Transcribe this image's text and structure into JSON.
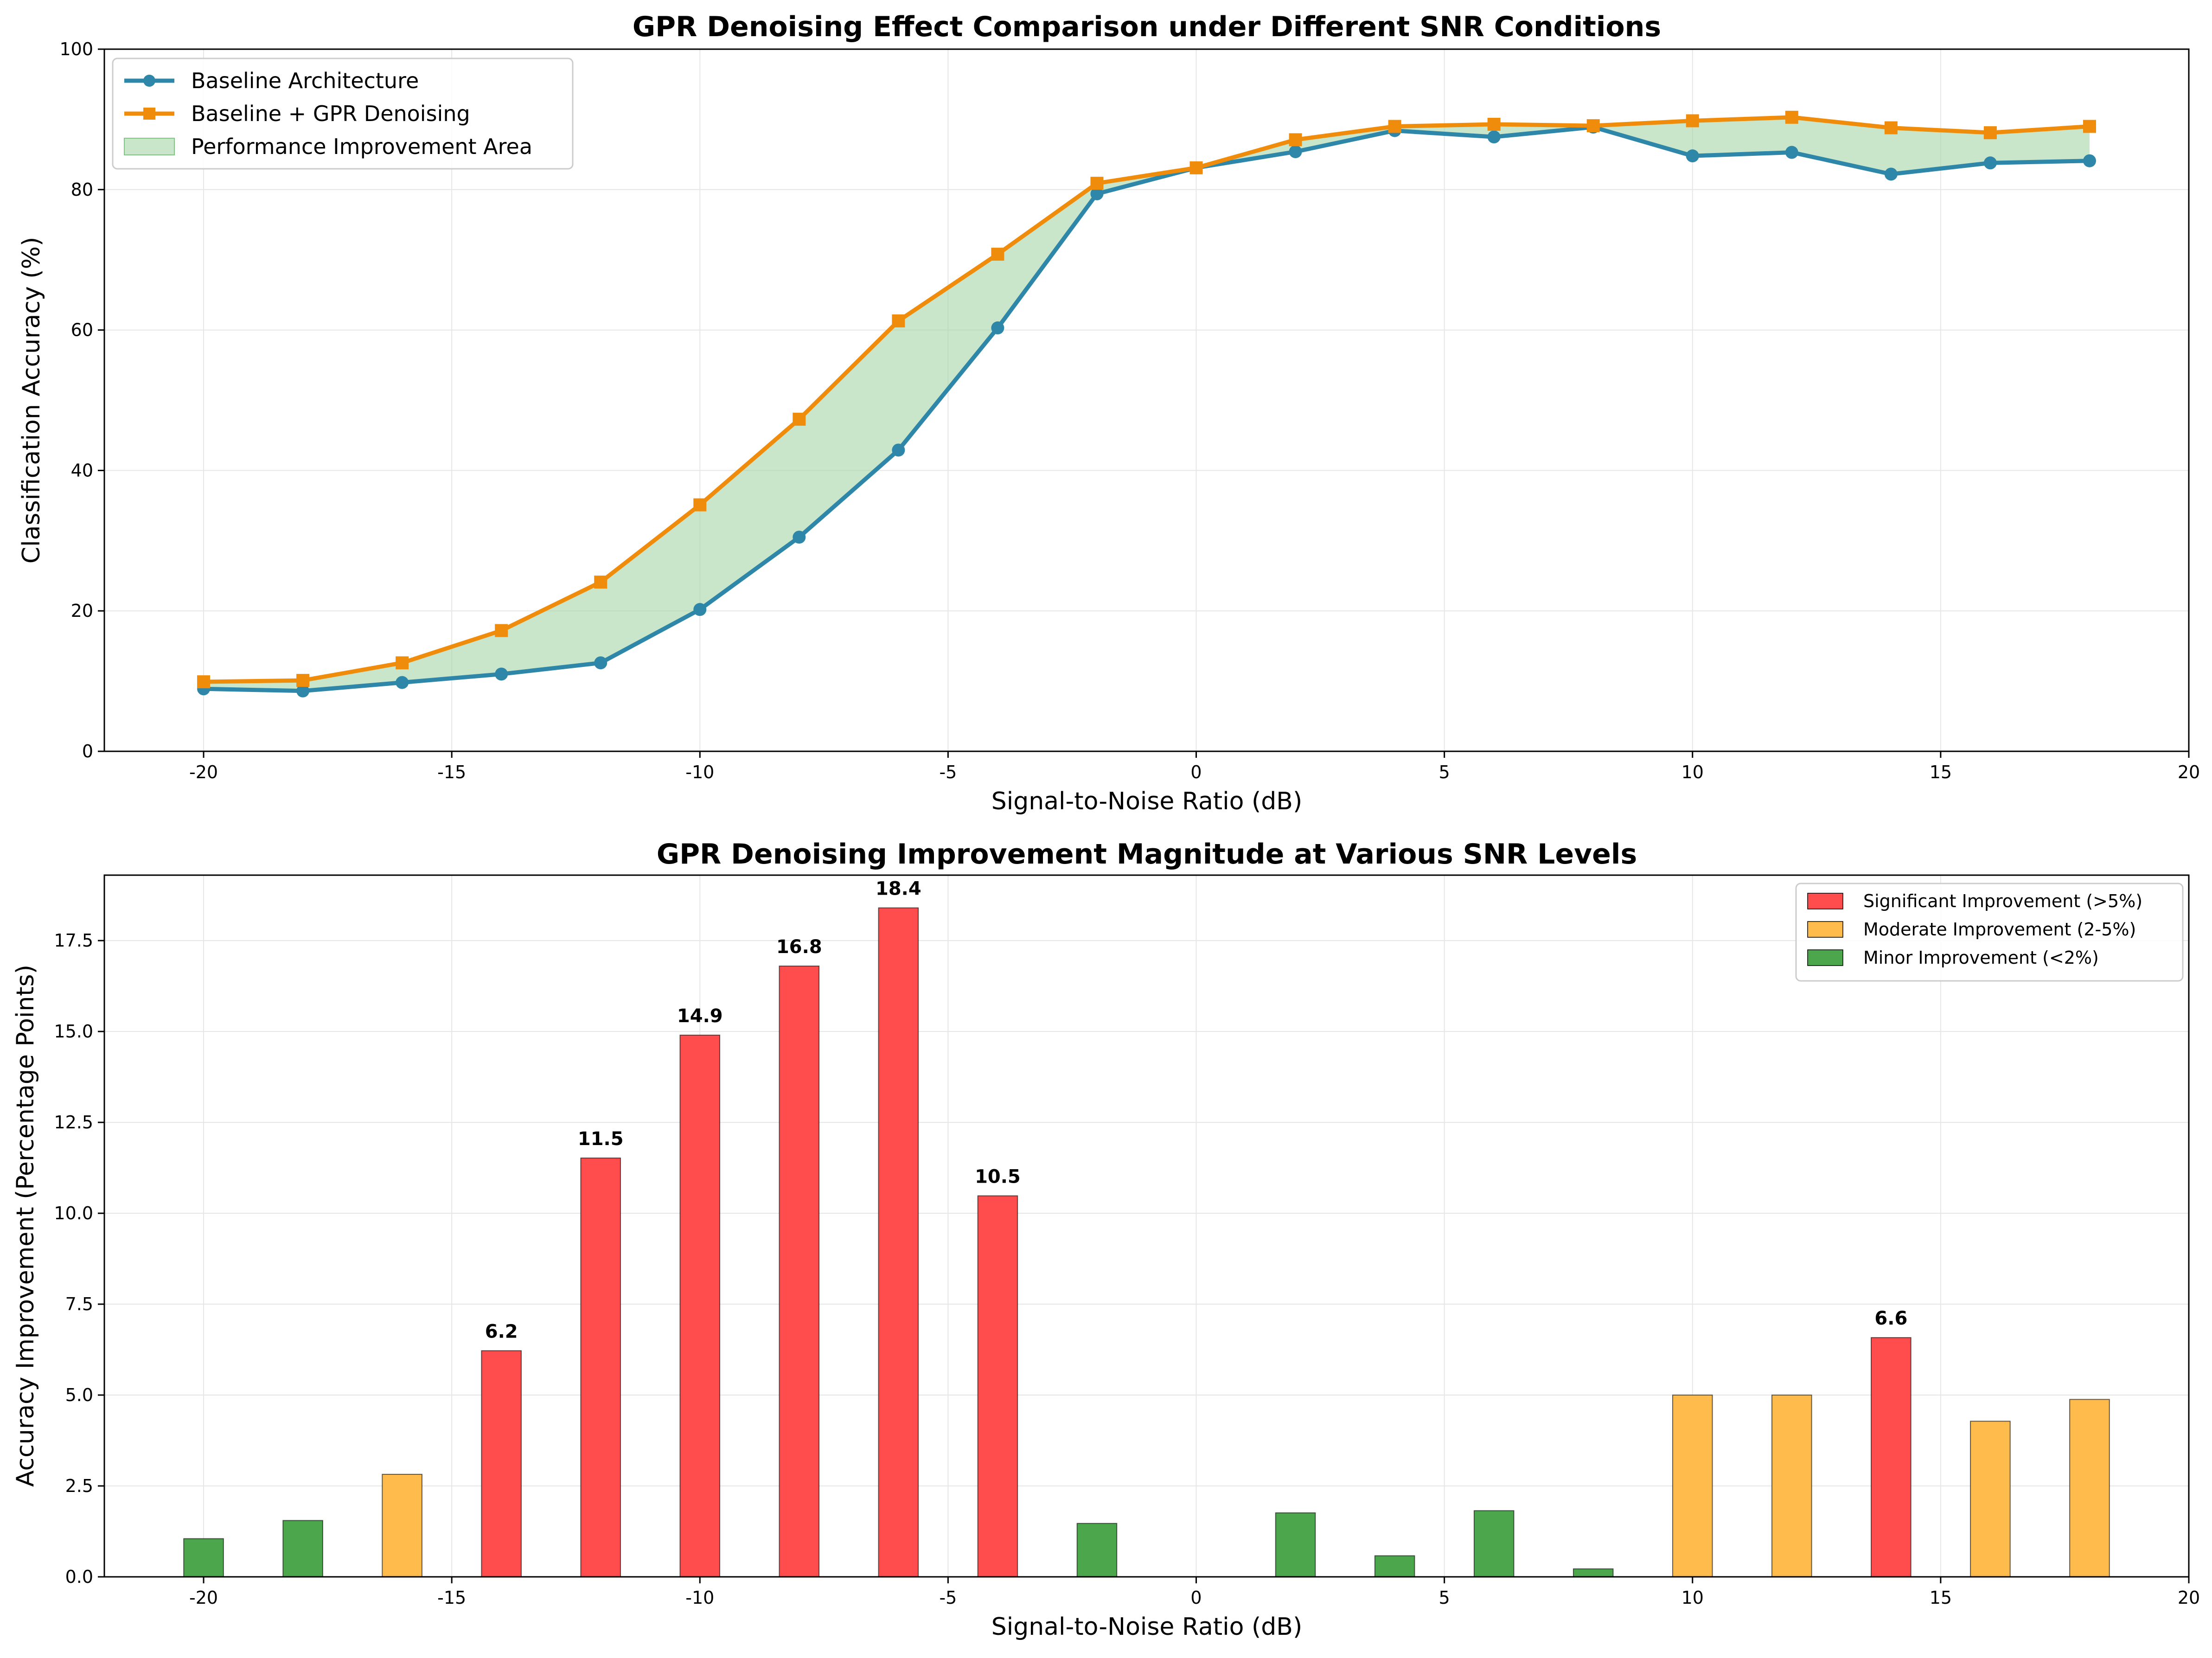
{
  "chart_data": [
    {
      "type": "line",
      "title": "GPR Denoising Effect Comparison under Different SNR Conditions",
      "xlabel": "Signal-to-Noise Ratio (dB)",
      "ylabel": "Classification Accuracy (%)",
      "xlim": [
        -22,
        20
      ],
      "ylim": [
        0,
        100
      ],
      "xticks": [
        -20,
        -15,
        -10,
        -5,
        0,
        5,
        10,
        15,
        20
      ],
      "yticks": [
        0,
        20,
        40,
        60,
        80,
        100
      ],
      "grid": true,
      "legend_position": "top-left",
      "x": [
        -20,
        -18,
        -16,
        -14,
        -12,
        -10,
        -8,
        -6,
        -4,
        -2,
        0,
        2,
        4,
        6,
        8,
        10,
        12,
        14,
        16,
        18
      ],
      "series": [
        {
          "name": "Baseline Architecture",
          "color": "#2e86a8",
          "marker": "circle",
          "values": [
            8.9,
            8.6,
            9.8,
            11.0,
            12.6,
            20.2,
            30.5,
            42.9,
            60.3,
            79.4,
            83.1,
            85.4,
            88.4,
            87.5,
            88.9,
            84.8,
            85.3,
            82.2,
            83.8,
            84.1
          ]
        },
        {
          "name": "Baseline + GPR Denoising",
          "color": "#f08c0c",
          "marker": "square",
          "values": [
            9.9,
            10.1,
            12.6,
            17.2,
            24.1,
            35.1,
            47.3,
            61.3,
            70.8,
            80.9,
            83.1,
            87.1,
            89.0,
            89.3,
            89.1,
            89.8,
            90.3,
            88.8,
            88.1,
            89.0
          ]
        }
      ],
      "fill_between": {
        "name": "Performance Improvement Area",
        "color": "#a5d6a7"
      }
    },
    {
      "type": "bar",
      "title": "GPR Denoising Improvement Magnitude at Various SNR Levels",
      "xlabel": "Signal-to-Noise Ratio (dB)",
      "ylabel": "Accuracy Improvement (Percentage Points)",
      "xlim": [
        -22,
        20
      ],
      "ylim": [
        0,
        19.3
      ],
      "xticks": [
        -20,
        -15,
        -10,
        -5,
        0,
        5,
        10,
        15,
        20
      ],
      "yticks": [
        0.0,
        2.5,
        5.0,
        7.5,
        10.0,
        12.5,
        15.0,
        17.5
      ],
      "grid": true,
      "legend_position": "top-right",
      "categories": [
        -20,
        -18,
        -16,
        -14,
        -12,
        -10,
        -8,
        -6,
        -4,
        -2,
        0,
        2,
        4,
        6,
        8,
        10,
        12,
        14,
        16,
        18
      ],
      "values": [
        1.05,
        1.55,
        2.82,
        6.22,
        11.52,
        14.9,
        16.8,
        18.4,
        10.48,
        1.47,
        0.0,
        1.76,
        0.58,
        1.82,
        0.22,
        5.0,
        5.0,
        6.58,
        4.28,
        4.88
      ],
      "bar_class": [
        "minor",
        "minor",
        "moderate",
        "significant",
        "significant",
        "significant",
        "significant",
        "significant",
        "significant",
        "minor",
        "minor",
        "minor",
        "minor",
        "minor",
        "minor",
        "moderate",
        "moderate",
        "significant",
        "moderate",
        "moderate"
      ],
      "data_labels": [
        "",
        "",
        "",
        "6.2",
        "11.5",
        "14.9",
        "16.8",
        "18.4",
        "10.5",
        "",
        "",
        "",
        "",
        "",
        "",
        "",
        "",
        "6.6",
        "",
        ""
      ],
      "legend": [
        {
          "key": "significant",
          "label": "Significant Improvement (>5%)",
          "color": "#ff4c4c"
        },
        {
          "key": "moderate",
          "label": "Moderate Improvement (2-5%)",
          "color": "#ffbb4c"
        },
        {
          "key": "minor",
          "label": "Minor Improvement (<2%)",
          "color": "#4ca64c"
        }
      ]
    }
  ]
}
